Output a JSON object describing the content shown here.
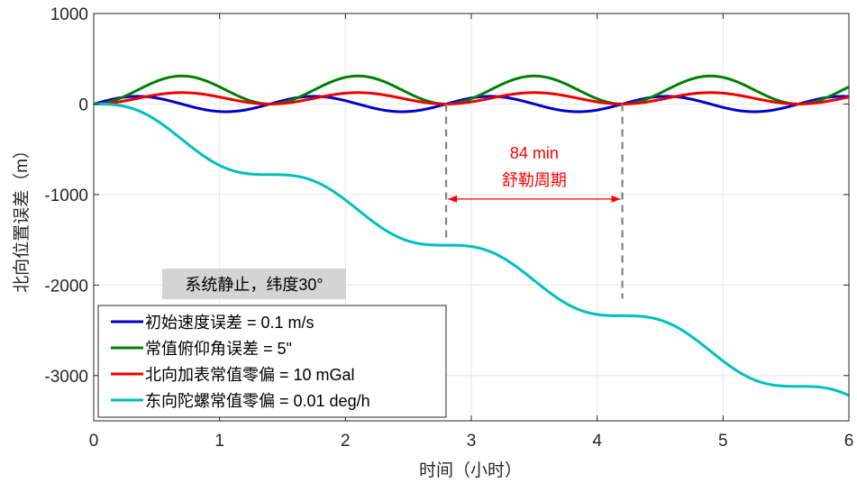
{
  "chart_data": {
    "type": "line",
    "xlabel": "时间（小时）",
    "ylabel": "北向位置误差（m）",
    "xlim": [
      0,
      6
    ],
    "ylim": [
      -3500,
      1000
    ],
    "xticks": [
      0,
      1,
      2,
      3,
      4,
      5,
      6
    ],
    "yticks": [
      -3000,
      -2000,
      -1000,
      0,
      1000
    ],
    "xtick_labels": [
      "0",
      "1",
      "2",
      "3",
      "4",
      "5",
      "6"
    ],
    "ytick_labels": [
      "-3000",
      "-2000",
      "-1000",
      "0",
      "1000"
    ],
    "grid": true,
    "legend_position": "bottom-left",
    "period_hours": 1.4,
    "series": [
      {
        "name": "初始速度误差 = 0.1 m/s",
        "color": "#0000cc",
        "kind": "sin",
        "amplitude": 85
      },
      {
        "name": "常值俯仰角误差 = 5\"",
        "color": "#007f00",
        "kind": "one_minus_cos",
        "amplitude": 155
      },
      {
        "name": "北向加表常值零偏 = 10 mGal",
        "color": "#ee0000",
        "kind": "one_minus_cos",
        "amplitude": 63
      },
      {
        "name": "东向陀螺常值零偏 = 0.01 deg/h",
        "color": "#00bfbf",
        "kind": "ramp_plus_sin",
        "rate_per_hour": -557,
        "osc_amplitude": 124,
        "end_value": -3220
      }
    ],
    "annotations": {
      "box_text": "系统静止，纬度30°",
      "period_value": "84 min",
      "period_name": "舒勒周期",
      "marker_x": [
        2.8,
        4.2
      ]
    }
  }
}
